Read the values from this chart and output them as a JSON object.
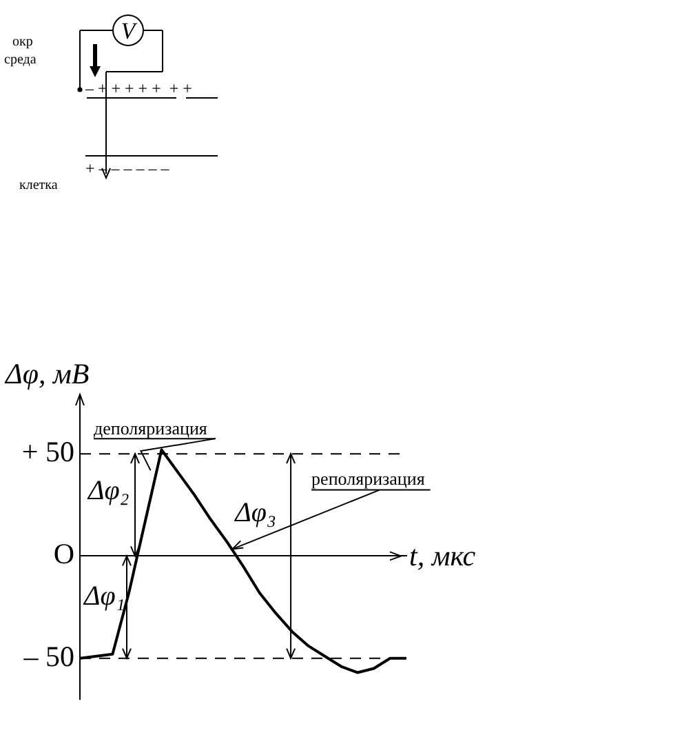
{
  "chart_data": {
    "type": "line",
    "ylabel": "Δφ, мВ",
    "xlabel": "t, мкс",
    "categories": [
      null,
      null,
      null,
      null,
      null,
      null,
      null,
      null,
      null,
      null,
      null,
      null,
      null,
      null,
      null,
      null,
      null,
      null,
      null,
      null,
      null
    ],
    "series": [
      {
        "color": "#000000",
        "values": [
          -50,
          -49,
          -48,
          -18,
          17,
          52,
          41,
          30,
          18,
          7,
          -5,
          -18,
          -28,
          -37,
          -44,
          -49,
          -54,
          -57,
          -55,
          -50,
          -50
        ]
      }
    ],
    "ylim": [
      -70,
      75
    ],
    "yticks": [
      {
        "value": 50,
        "label": "+ 50"
      },
      {
        "value": 0,
        "label": "O"
      },
      {
        "value": -50,
        "label": "– 50"
      }
    ],
    "ref_lines": [
      {
        "axis": "y",
        "value": 50,
        "color": "#000000",
        "line_style": "dashed"
      },
      {
        "axis": "y",
        "value": -50,
        "color": "#000000",
        "line_style": "dashed"
      }
    ],
    "annotations": [
      "деполяризация",
      "реполяризация",
      "Δφ₁",
      "Δφ₂",
      "Δφ₃",
      "V",
      "окр среда",
      "клетка",
      "– + + + + +  + +",
      "+ – – – – – –"
    ],
    "grid": false,
    "legend": false,
    "marker": "none",
    "line_style": "solid",
    "tick_labels": "y"
  }
}
